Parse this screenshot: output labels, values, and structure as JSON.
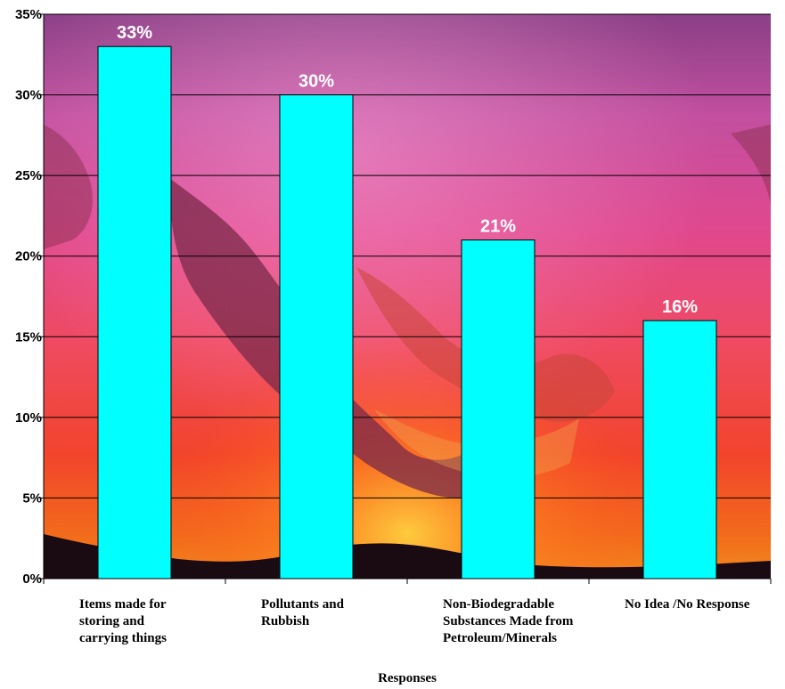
{
  "chart_data": {
    "type": "bar",
    "categories": [
      "Items made for storing and carrying things",
      "Pollutants and Rubbish",
      "Non-Biodegradable Substances Made from Petroleum/Minerals",
      "No Idea /No Response"
    ],
    "category_lines": [
      [
        "Items made for",
        "storing and",
        "carrying things"
      ],
      [
        "Pollutants and",
        "Rubbish"
      ],
      [
        "Non-Biodegradable",
        "Substances Made from",
        "Petroleum/Minerals"
      ],
      [
        "No Idea /No Response"
      ]
    ],
    "values": [
      33,
      30,
      21,
      16
    ],
    "data_labels": [
      "33%",
      "30%",
      "21%",
      "16%"
    ],
    "xlabel": "Responses",
    "ylabel": "",
    "ylim": [
      0,
      35
    ],
    "yticks": [
      0,
      5,
      10,
      15,
      20,
      25,
      30,
      35
    ],
    "ytick_labels": [
      "0%",
      "5%",
      "10%",
      "15%",
      "20%",
      "25%",
      "30%",
      "35%"
    ],
    "grid": true,
    "legend": "none",
    "bar_color": "#00ffff",
    "background": "sunset photograph"
  }
}
